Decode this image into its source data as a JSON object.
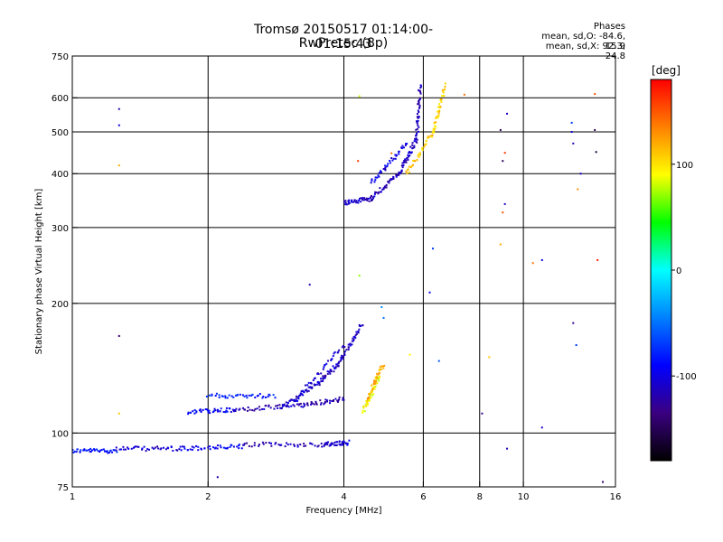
{
  "header": {
    "title": "Tromsø 20150517 01:14:00-01:15:43",
    "subtitle": "RwPretec (8p)"
  },
  "phases": {
    "title": "Phases",
    "line_o": "mean, sd,O: -84.6, 15.9",
    "line_x": "mean, sd,X: 92.3, 24.8"
  },
  "chart_data": {
    "type": "scatter",
    "title": "Tromsø 20150517 01:14:00-01:15:43",
    "subtitle": "RwPretec (8p)",
    "xlabel": "Frequency [MHz]",
    "ylabel": "Stationary phase Virtual Height [km]",
    "x_scale": "log",
    "y_scale": "log",
    "xlim": [
      1,
      16
    ],
    "ylim": [
      75,
      750
    ],
    "xticks": [
      1,
      2,
      4,
      6,
      8,
      10,
      16
    ],
    "xtick_labels": [
      "1",
      "2",
      "4",
      "6",
      "8",
      "10",
      "16"
    ],
    "yticks": [
      75,
      100,
      200,
      300,
      400,
      500,
      600,
      750
    ],
    "ytick_labels": [
      "75",
      "100",
      "200",
      "300",
      "400",
      "500",
      "600",
      "750"
    ],
    "grid": true,
    "colorbar": {
      "label": "[deg]",
      "range": [
        -180,
        180
      ],
      "ticks": [
        100,
        0,
        -100
      ],
      "tick_labels": [
        "100",
        "0",
        "-100"
      ],
      "stops": [
        "#000000",
        "#3a0080",
        "#0000ff",
        "#0080ff",
        "#00ffff",
        "#00ff00",
        "#ffff00",
        "#ff8000",
        "#ff0000"
      ]
    },
    "trace_segments": [
      {
        "from": [
          1.0,
          91
        ],
        "to": [
          1.25,
          91
        ],
        "phase": -85
      },
      {
        "from": [
          1.25,
          92
        ],
        "to": [
          1.75,
          92
        ],
        "phase": -110
      },
      {
        "from": [
          1.75,
          92
        ],
        "to": [
          2.4,
          93
        ],
        "phase": -95
      },
      {
        "from": [
          2.4,
          94
        ],
        "to": [
          3.6,
          94
        ],
        "phase": -115
      },
      {
        "from": [
          3.6,
          94
        ],
        "to": [
          4.1,
          95
        ],
        "phase": -105
      },
      {
        "from": [
          1.8,
          112
        ],
        "to": [
          2.3,
          113
        ],
        "phase": -95
      },
      {
        "from": [
          2.3,
          113
        ],
        "to": [
          3.2,
          116
        ],
        "phase": -115
      },
      {
        "from": [
          3.2,
          116
        ],
        "to": [
          4.0,
          120
        ],
        "phase": -118
      },
      {
        "from": [
          2.0,
          122
        ],
        "to": [
          2.8,
          122
        ],
        "phase": -80
      },
      {
        "from": [
          2.9,
          115
        ],
        "to": [
          3.5,
          130
        ],
        "phase": -110
      },
      {
        "from": [
          3.5,
          130
        ],
        "to": [
          3.9,
          145
        ],
        "phase": -110
      },
      {
        "from": [
          3.9,
          145
        ],
        "to": [
          4.4,
          180
        ],
        "phase": -112
      },
      {
        "from": [
          3.1,
          118
        ],
        "to": [
          4.0,
          160
        ],
        "phase": -105
      },
      {
        "from": [
          4.4,
          112
        ],
        "to": [
          4.8,
          135
        ],
        "phase": 90
      },
      {
        "from": [
          4.5,
          120
        ],
        "to": [
          4.9,
          145
        ],
        "phase": 120
      },
      {
        "from": [
          4.0,
          342
        ],
        "to": [
          4.6,
          350
        ],
        "phase": -110
      },
      {
        "from": [
          4.6,
          350
        ],
        "to": [
          5.3,
          400
        ],
        "phase": -115
      },
      {
        "from": [
          5.3,
          400
        ],
        "to": [
          5.8,
          480
        ],
        "phase": -112
      },
      {
        "from": [
          5.8,
          480
        ],
        "to": [
          5.9,
          640
        ],
        "phase": -115
      },
      {
        "from": [
          4.6,
          380
        ],
        "to": [
          5.5,
          470
        ],
        "phase": -100
      },
      {
        "from": [
          5.5,
          400
        ],
        "to": [
          6.3,
          500
        ],
        "phase": 110
      },
      {
        "from": [
          6.3,
          500
        ],
        "to": [
          6.7,
          640
        ],
        "phase": 105
      }
    ],
    "scatter_points": [
      {
        "x": 1.27,
        "y": 565,
        "phase": -120
      },
      {
        "x": 1.27,
        "y": 518,
        "phase": -100
      },
      {
        "x": 1.27,
        "y": 418,
        "phase": 120
      },
      {
        "x": 1.27,
        "y": 168,
        "phase": -140
      },
      {
        "x": 1.27,
        "y": 111,
        "phase": 110
      },
      {
        "x": 3.36,
        "y": 221,
        "phase": -120
      },
      {
        "x": 4.33,
        "y": 605,
        "phase": 80
      },
      {
        "x": 4.33,
        "y": 232,
        "phase": 70
      },
      {
        "x": 4.85,
        "y": 196,
        "phase": -40
      },
      {
        "x": 4.9,
        "y": 185,
        "phase": -50
      },
      {
        "x": 5.6,
        "y": 152,
        "phase": 90
      },
      {
        "x": 6.2,
        "y": 212,
        "phase": -100
      },
      {
        "x": 6.3,
        "y": 268,
        "phase": -70
      },
      {
        "x": 6.5,
        "y": 147,
        "phase": -60
      },
      {
        "x": 7.4,
        "y": 610,
        "phase": 140
      },
      {
        "x": 8.1,
        "y": 111,
        "phase": -130
      },
      {
        "x": 8.9,
        "y": 505,
        "phase": -150
      },
      {
        "x": 9.0,
        "y": 428,
        "phase": -150
      },
      {
        "x": 9.2,
        "y": 551,
        "phase": -110
      },
      {
        "x": 9.1,
        "y": 447,
        "phase": 160
      },
      {
        "x": 9.0,
        "y": 325,
        "phase": 150
      },
      {
        "x": 9.1,
        "y": 340,
        "phase": -110
      },
      {
        "x": 8.9,
        "y": 274,
        "phase": 120
      },
      {
        "x": 9.2,
        "y": 92,
        "phase": -115
      },
      {
        "x": 8.4,
        "y": 150,
        "phase": 110
      },
      {
        "x": 10.5,
        "y": 248,
        "phase": 140
      },
      {
        "x": 11.0,
        "y": 252,
        "phase": -100
      },
      {
        "x": 11.0,
        "y": 103,
        "phase": -110
      },
      {
        "x": 12.8,
        "y": 525,
        "phase": -70
      },
      {
        "x": 12.8,
        "y": 500,
        "phase": -100
      },
      {
        "x": 12.9,
        "y": 470,
        "phase": -115
      },
      {
        "x": 12.9,
        "y": 180,
        "phase": -130
      },
      {
        "x": 13.1,
        "y": 160,
        "phase": -70
      },
      {
        "x": 13.4,
        "y": 400,
        "phase": -110
      },
      {
        "x": 13.2,
        "y": 368,
        "phase": 130
      },
      {
        "x": 14.4,
        "y": 612,
        "phase": 150
      },
      {
        "x": 14.4,
        "y": 505,
        "phase": -150
      },
      {
        "x": 14.5,
        "y": 449,
        "phase": -160
      },
      {
        "x": 14.6,
        "y": 252,
        "phase": 170
      },
      {
        "x": 15.0,
        "y": 77,
        "phase": -140
      },
      {
        "x": 2.1,
        "y": 79,
        "phase": -120
      },
      {
        "x": 5.1,
        "y": 446,
        "phase": 140
      },
      {
        "x": 4.3,
        "y": 428,
        "phase": 160
      }
    ]
  }
}
